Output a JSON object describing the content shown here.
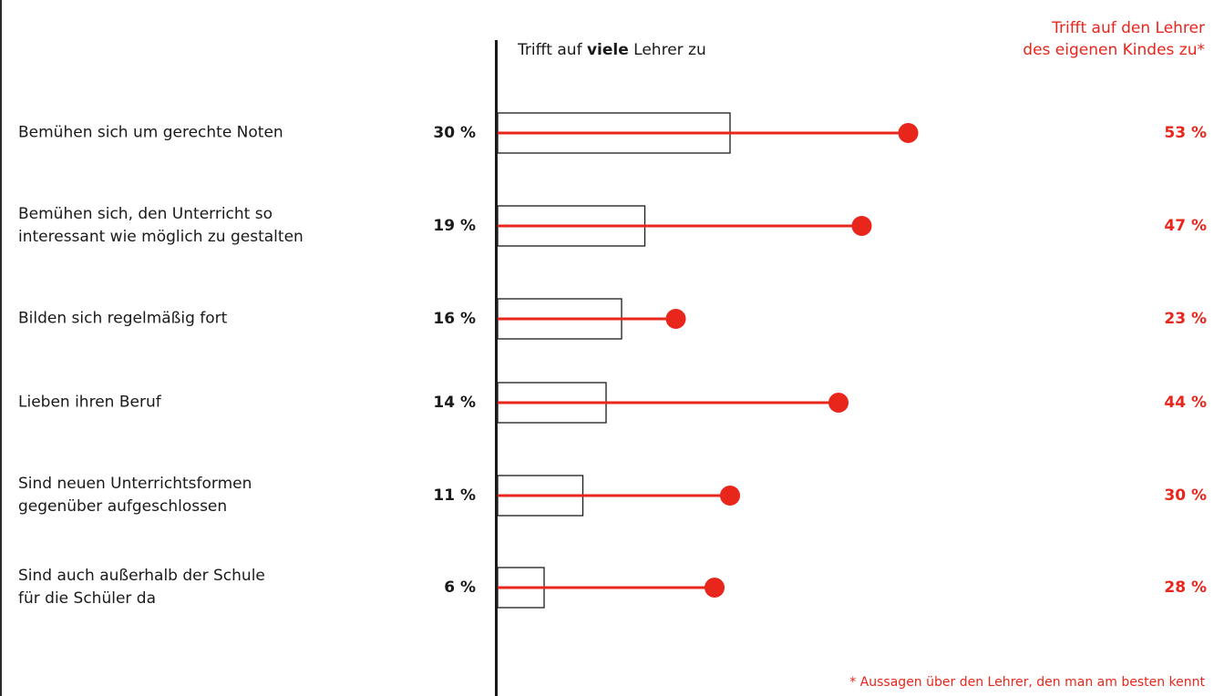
{
  "chart_data": {
    "type": "bar",
    "header_many_prefix": "Trifft auf ",
    "header_many_bold": "viele",
    "header_many_suffix": " Lehrer zu",
    "header_own_line1": "Trifft auf den Lehrer",
    "header_own_line2": "des eigenen Kindes zu*",
    "footnote": "* Aussagen über den Lehrer, den man am besten kennt",
    "unit": "%",
    "colors": {
      "many": "#1a1a1a",
      "own": "#e8261c"
    },
    "categories": [
      "Bemühen sich um gerechte Noten",
      "Bemühen sich, den Unterricht so\ninteressant wie möglich zu gestalten",
      "Bilden sich regelmäßig fort",
      "Lieben ihren Beruf",
      "Sind neuen Unterrichtsformen\ngegenüber aufgeschlossen",
      "Sind auch außerhalb der Schule\nfür die Schüler da"
    ],
    "series": [
      {
        "name": "Trifft auf viele Lehrer zu",
        "values": [
          30,
          19,
          16,
          14,
          11,
          6
        ],
        "labels": [
          "30 %",
          "19 %",
          "16 %",
          "14 %",
          "11 %",
          "6 %"
        ]
      },
      {
        "name": "Trifft auf den Lehrer des eigenen Kindes zu*",
        "values": [
          53,
          47,
          23,
          44,
          30,
          28
        ],
        "labels": [
          "53 %",
          "47 %",
          "23 %",
          "44 %",
          "30 %",
          "28 %"
        ]
      }
    ]
  }
}
